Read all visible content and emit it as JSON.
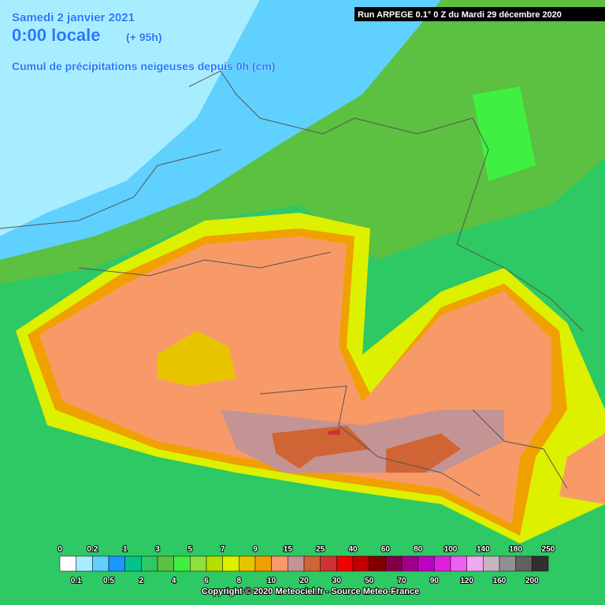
{
  "header": {
    "date": "Samedi 2 janvier 2021",
    "time": "0:00 locale",
    "lead": "(+ 95h)",
    "title": "Cumul de précipitations neigeuses depuis 0h (cm)",
    "run": "Run ARPEGE 0.1° 0 Z du Mardi 29 décembre 2020"
  },
  "legend": {
    "top_labels": [
      "0",
      "0.2",
      "1",
      "3",
      "5",
      "7",
      "9",
      "15",
      "25",
      "40",
      "60",
      "80",
      "100",
      "140",
      "180",
      "250"
    ],
    "bottom_labels": [
      "0.1",
      "0.5",
      "2",
      "4",
      "6",
      "8",
      "10",
      "20",
      "30",
      "50",
      "70",
      "90",
      "120",
      "160",
      "200"
    ],
    "colors": [
      "#ffffff",
      "#a8ecff",
      "#60d0ff",
      "#1e96ff",
      "#00c48c",
      "#2ec864",
      "#5cc040",
      "#40f040",
      "#8ee040",
      "#b4e000",
      "#dcf000",
      "#e8c400",
      "#f0a000",
      "#f89a68",
      "#c49494",
      "#d06434",
      "#cc3434",
      "#f00000",
      "#c00000",
      "#800000",
      "#800048",
      "#a00088",
      "#c000c0",
      "#e020e0",
      "#f060f0",
      "#f0a8f0",
      "#c4b4c4",
      "#909090",
      "#606060",
      "#303030"
    ]
  },
  "footer": {
    "copyright": "Copyright © 2020 Meteociel.fr - Source Meteo-France"
  }
}
